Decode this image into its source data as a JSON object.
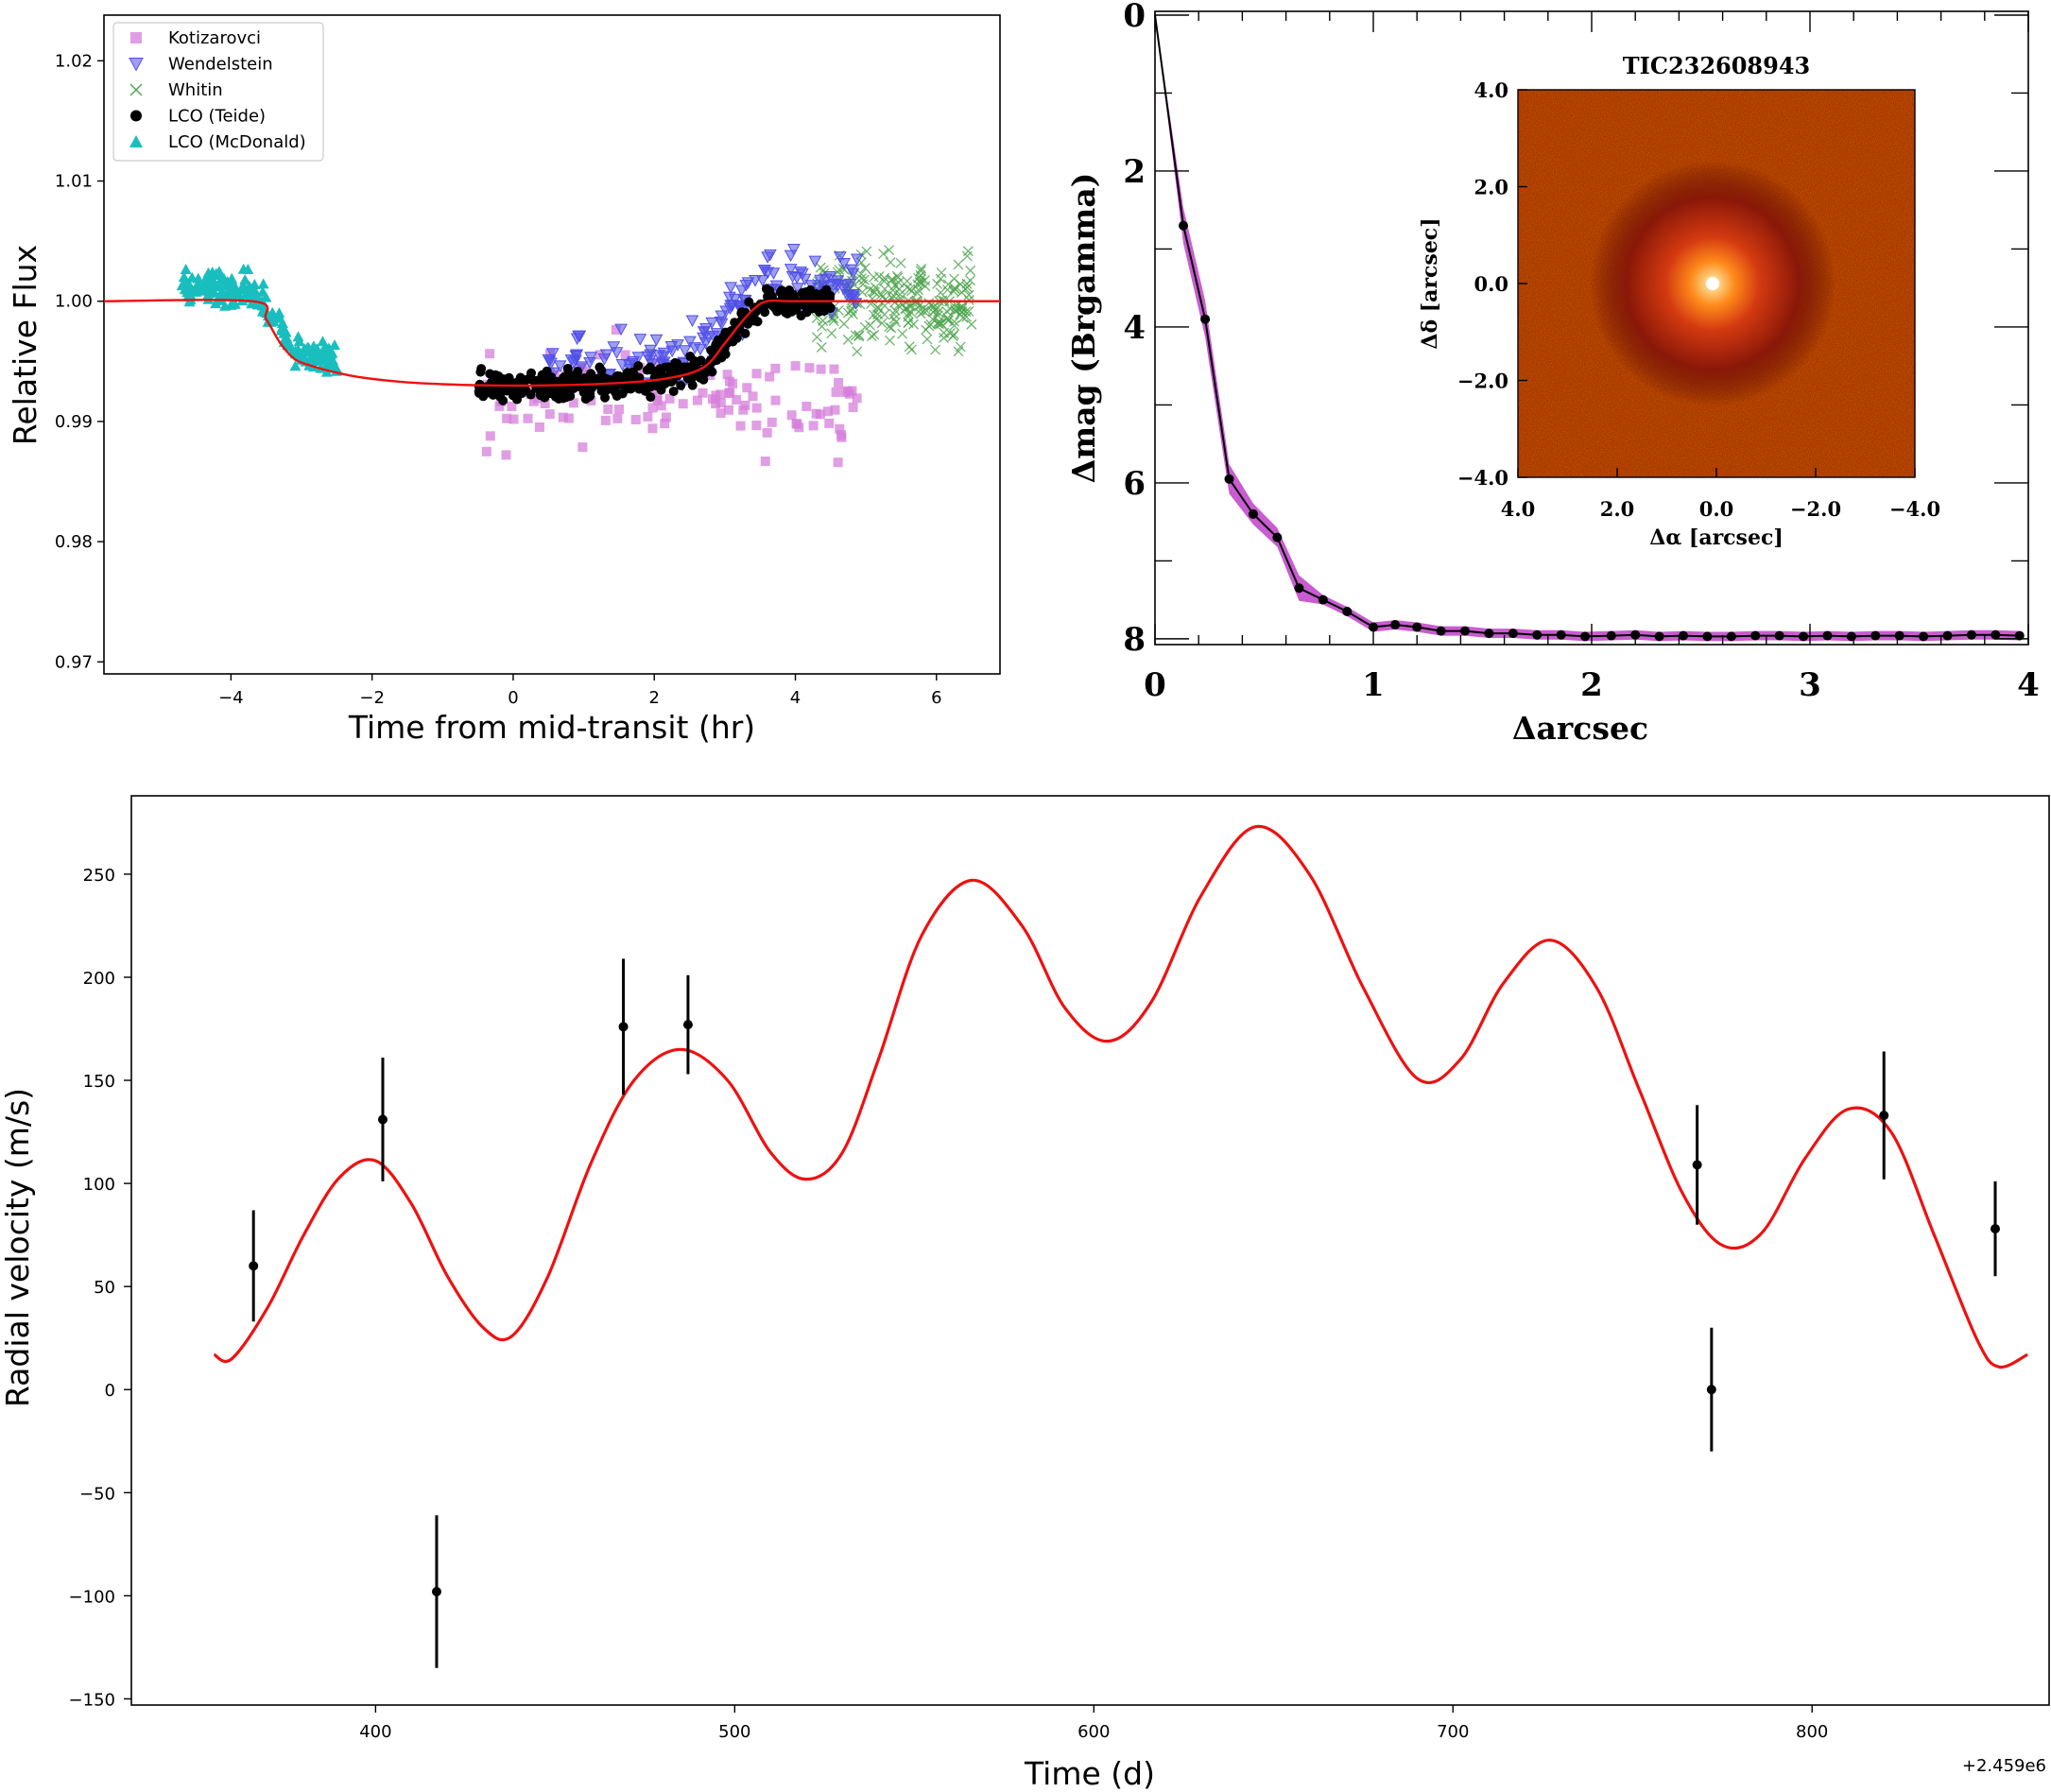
{
  "chart_data": [
    {
      "type": "scatter",
      "panel": "top-left",
      "title": "",
      "xlabel": "Time from mid-transit (hr)",
      "ylabel": "Relative Flux",
      "xlim": [
        -5.8,
        6.9
      ],
      "ylim": [
        0.969,
        1.0238
      ],
      "xticks": [
        -4,
        -2,
        0,
        2,
        4,
        6
      ],
      "yticks": [
        0.97,
        0.98,
        0.99,
        1.0,
        1.01,
        1.02
      ],
      "ytick_labels": [
        "0.97",
        "0.98",
        "0.99",
        "1.00",
        "1.01",
        "1.02"
      ],
      "legend": [
        "Kotizarovci",
        "Wendelstein",
        "Whitin",
        "LCO (Teide)",
        "LCO (McDonald)"
      ],
      "legend_position": "top-left",
      "series": [
        {
          "name": "Kotizarovci",
          "marker": "square",
          "color": "#d67ddb",
          "x_range": [
            -0.4,
            4.9
          ],
          "y_center": 0.992,
          "y_spread": 0.007,
          "count": 120
        },
        {
          "name": "Wendelstein",
          "marker": "triangle-down",
          "color": "#5050e8",
          "x_range": [
            0.5,
            4.9
          ],
          "y_center": 0.9955,
          "y_spread": 0.004,
          "count": 170
        },
        {
          "name": "Whitin",
          "marker": "x",
          "color": "#4aa24a",
          "x_range": [
            4.3,
            6.5
          ],
          "y_center": 1.0,
          "y_spread": 0.006,
          "count": 230
        },
        {
          "name": "LCO (Teide)",
          "marker": "circle",
          "color": "#000000",
          "x_range": [
            -0.5,
            4.5
          ],
          "y_center": 0.993,
          "y_spread": 0.002,
          "count": 420
        },
        {
          "name": "LCO (McDonald)",
          "marker": "triangle-up",
          "color": "#19bebe",
          "x_range": [
            -4.7,
            -2.5
          ],
          "y_center": 0.998,
          "y_spread": 0.0022,
          "count": 200
        }
      ],
      "model": {
        "name": "transit model",
        "color": "#ee1111",
        "x": [
          -5.8,
          -3.7,
          -3.5,
          -3.3,
          -3.1,
          -2.9,
          -2.6,
          -2.2,
          -1.6,
          -1.0,
          -0.4,
          0.5,
          1.5,
          2.2,
          2.7,
          3.0,
          3.2,
          3.4,
          3.6,
          4.0,
          5.0,
          6.9
        ],
        "y": [
          1.0,
          1.0,
          0.9985,
          0.9965,
          0.9952,
          0.9947,
          0.9942,
          0.9937,
          0.9933,
          0.9931,
          0.993,
          0.993,
          0.9932,
          0.9936,
          0.9945,
          0.9965,
          0.998,
          0.9993,
          1.0,
          1.0,
          1.0,
          1.0
        ]
      }
    },
    {
      "type": "line",
      "panel": "top-right",
      "xlabel": "Δarcsec",
      "ylabel": "Δmag (Brgamma)",
      "xlim": [
        0,
        4
      ],
      "ylim_inverted": [
        8.05,
        0
      ],
      "xticks": [
        0,
        1,
        2,
        3,
        4
      ],
      "yticks": [
        0,
        2,
        4,
        6,
        8
      ],
      "x": [
        0.0,
        0.13,
        0.23,
        0.34,
        0.45,
        0.56,
        0.66,
        0.77,
        0.88,
        1.0,
        1.1,
        1.2,
        1.31,
        1.42,
        1.53,
        1.64,
        1.75,
        1.86,
        1.97,
        2.09,
        2.2,
        2.31,
        2.42,
        2.53,
        2.64,
        2.75,
        2.86,
        2.97,
        3.08,
        3.19,
        3.3,
        3.41,
        3.52,
        3.63,
        3.74,
        3.85,
        3.96
      ],
      "y": [
        0.0,
        2.7,
        3.9,
        5.95,
        6.4,
        6.7,
        7.35,
        7.5,
        7.65,
        7.85,
        7.82,
        7.85,
        7.9,
        7.9,
        7.93,
        7.93,
        7.95,
        7.95,
        7.97,
        7.96,
        7.95,
        7.97,
        7.96,
        7.97,
        7.97,
        7.96,
        7.96,
        7.97,
        7.96,
        7.97,
        7.96,
        7.96,
        7.97,
        7.96,
        7.95,
        7.95,
        7.96
      ],
      "band_color": "#c040c8",
      "inset": {
        "title": "TIC232608943",
        "xlabel": "Δα [arcsec]",
        "ylabel": "Δδ [arcsec]",
        "xticks": [
          "4.0",
          "2.0",
          "0.0",
          "−2.0",
          "−4.0"
        ],
        "yticks": [
          "4.0",
          "2.0",
          "0.0",
          "−2.0",
          "−4.0"
        ]
      }
    },
    {
      "type": "line",
      "panel": "bottom",
      "xlabel": "Time (d)",
      "ylabel": "Radial velocity (m/s)",
      "offset_label": "+2.459e6",
      "xlim": [
        332,
        866
      ],
      "ylim": [
        -153,
        288
      ],
      "xticks": [
        400,
        500,
        600,
        700,
        800
      ],
      "yticks": [
        -150,
        -100,
        -50,
        0,
        50,
        100,
        150,
        200,
        250
      ],
      "points": {
        "x": [
          366,
          402,
          417,
          469,
          487,
          768,
          772,
          820,
          851
        ],
        "y": [
          60,
          131,
          -98,
          176,
          177,
          109,
          0,
          133,
          78
        ],
        "yerr": [
          27,
          30,
          37,
          33,
          24,
          29,
          30,
          31,
          23
        ]
      },
      "model": {
        "name": "RV model",
        "color": "#ee1111",
        "x": [
          355,
          360,
          370,
          380,
          390,
          400,
          410,
          420,
          430,
          438,
          448,
          460,
          472,
          485,
          498,
          510,
          520,
          530,
          540,
          552,
          566,
          580,
          592,
          604,
          616,
          630,
          645,
          660,
          675,
          690,
          702,
          714,
          727,
          740,
          752,
          764,
          775,
          786,
          798,
          810,
          822,
          834,
          846,
          852,
          860
        ],
        "y": [
          17,
          15,
          40,
          75,
          103,
          111,
          90,
          55,
          30,
          26,
          55,
          110,
          150,
          165,
          150,
          115,
          102,
          115,
          160,
          220,
          247,
          225,
          185,
          169,
          188,
          240,
          273,
          250,
          195,
          151,
          160,
          197,
          218,
          195,
          145,
          95,
          70,
          76,
          112,
          136,
          125,
          75,
          24,
          11,
          17
        ]
      }
    }
  ]
}
